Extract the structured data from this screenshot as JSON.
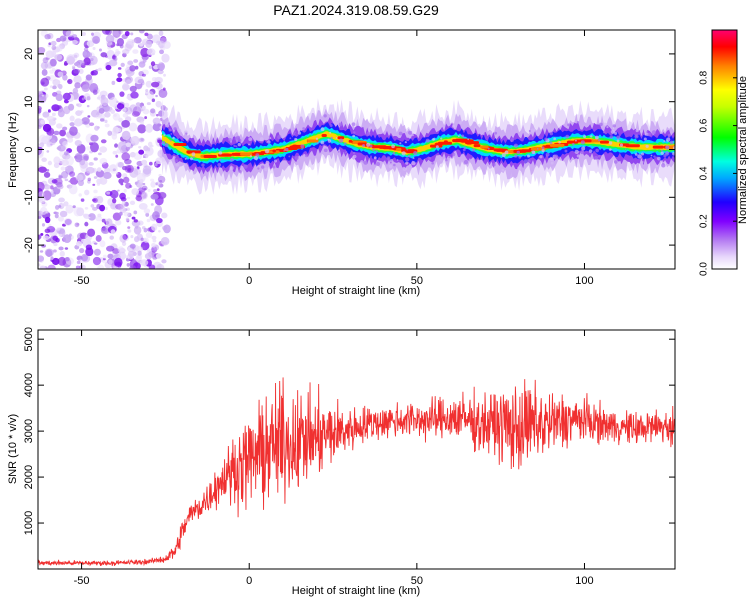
{
  "figure": {
    "title": "PAZ1.2024.319.08.59.G29"
  },
  "chart_data": [
    {
      "type": "heatmap",
      "xlabel": "Height of straight line (km)",
      "ylabel": "Frequency (Hz)",
      "xlim": [
        -63,
        127
      ],
      "ylim": [
        -25,
        25
      ],
      "xticks": [
        -50,
        0,
        50,
        100
      ],
      "yticks": [
        -20,
        -10,
        0,
        10,
        20
      ],
      "grid": false,
      "colorbar": {
        "label": "Normalized spectral amplitude",
        "range": [
          0,
          1
        ],
        "ticks": [
          "0.0",
          "0.2",
          "0.4",
          "0.6",
          "0.8"
        ],
        "colormap": [
          "#ffffff",
          "#d6b8f5",
          "#8000ff",
          "#0000ff",
          "#00e5ff",
          "#00ff00",
          "#ffff00",
          "#ff8000",
          "#ff0000",
          "#ff0080"
        ]
      },
      "noise_region_x": [
        -63,
        -26
      ],
      "ridge": {
        "x": [
          -26,
          -22,
          -18,
          -14,
          -10,
          -5,
          0,
          5,
          10,
          15,
          20,
          23,
          27,
          32,
          37,
          42,
          47,
          52,
          57,
          62,
          67,
          72,
          77,
          82,
          87,
          92,
          97,
          102,
          107,
          112,
          117,
          122,
          127
        ],
        "y": [
          2.5,
          0.8,
          -0.8,
          -1.5,
          -1.2,
          -1.0,
          -1.0,
          -0.5,
          0,
          1.2,
          2.5,
          3.3,
          2.3,
          1.2,
          0.5,
          0.3,
          -0.5,
          0.2,
          1.5,
          2.0,
          0.8,
          0,
          -0.5,
          -0.2,
          0.5,
          1.2,
          1.8,
          1.8,
          1.3,
          0.8,
          0.5,
          0.5,
          0.5
        ]
      }
    },
    {
      "type": "line",
      "xlabel": "Height of straight line (km)",
      "ylabel": "SNR (10 * v/v)",
      "xlim": [
        -63,
        127
      ],
      "ylim": [
        0,
        5200
      ],
      "xticks": [
        -50,
        0,
        50,
        100
      ],
      "yticks": [
        1000,
        2000,
        3000,
        4000,
        5000
      ],
      "grid": false,
      "series": [
        {
          "color": "#f03030",
          "envelope_x": [
            -63,
            -40,
            -30,
            -25,
            -22,
            -20,
            -18,
            -15,
            -12,
            -10,
            -7,
            -5,
            0,
            5,
            10,
            15,
            20,
            25,
            30,
            35,
            40,
            45,
            50,
            55,
            60,
            65,
            70,
            75,
            80,
            85,
            90,
            95,
            100,
            105,
            110,
            115,
            120,
            127
          ],
          "envelope_mean": [
            130,
            130,
            160,
            220,
            400,
            800,
            1150,
            1350,
            1550,
            1800,
            2000,
            2150,
            2350,
            2600,
            2750,
            2800,
            2850,
            2950,
            3050,
            3150,
            3200,
            3250,
            3250,
            3250,
            3300,
            3250,
            3150,
            3150,
            3050,
            3150,
            3150,
            3250,
            3250,
            3150,
            3100,
            3050,
            3100,
            3100
          ],
          "envelope_spread": [
            60,
            60,
            60,
            90,
            200,
            300,
            300,
            350,
            400,
            500,
            600,
            800,
            1100,
            1300,
            1400,
            1200,
            1000,
            800,
            550,
            450,
            400,
            450,
            450,
            500,
            550,
            650,
            700,
            900,
            1100,
            1000,
            800,
            650,
            550,
            450,
            400,
            400,
            400,
            500
          ]
        }
      ]
    }
  ]
}
